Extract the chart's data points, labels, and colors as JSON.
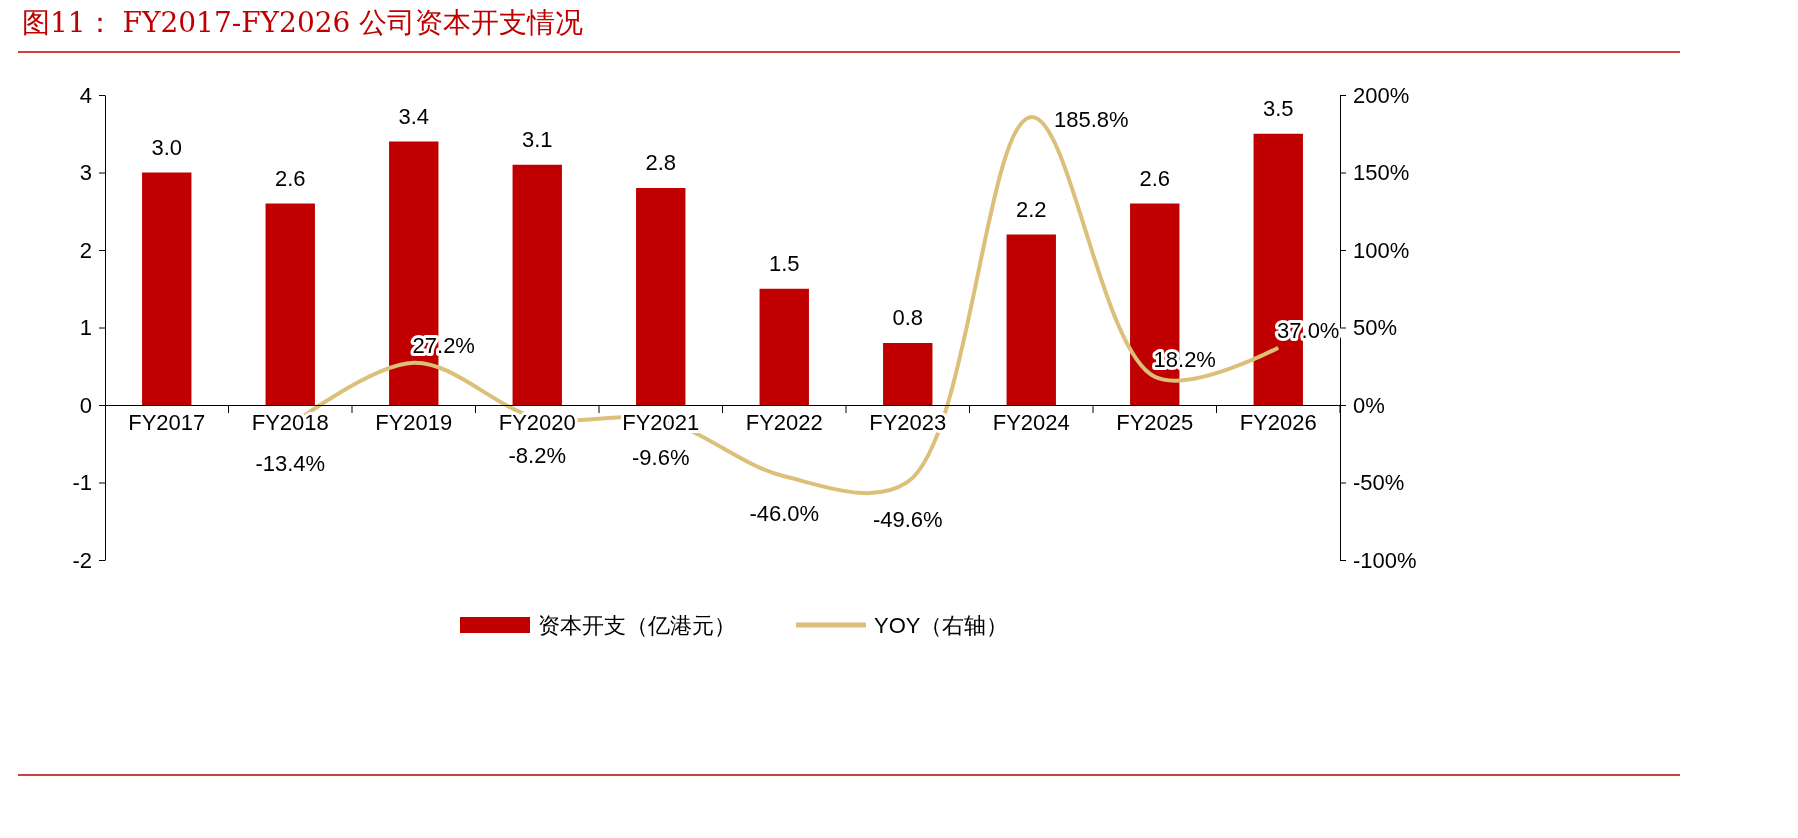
{
  "chart_data": {
    "type": "bar",
    "title": "图11： FY2017-FY2026 公司资本开支情况",
    "categories": [
      "FY2017",
      "FY2018",
      "FY2019",
      "FY2020",
      "FY2021",
      "FY2022",
      "FY2023",
      "FY2024",
      "FY2025",
      "FY2026"
    ],
    "series": [
      {
        "name": "资本开支（亿港元）",
        "color": "#c00000",
        "values": [
          3.0,
          2.6,
          3.4,
          3.1,
          2.8,
          1.5,
          0.8,
          2.2,
          2.6,
          3.5
        ],
        "value_labels": [
          "3.0",
          "2.6",
          "3.4",
          "3.1",
          "2.8",
          "1.5",
          "0.8",
          "2.2",
          "2.6",
          "3.5"
        ]
      },
      {
        "name": "YOY（右轴）",
        "type": "line",
        "axis": "y2",
        "color": "#dcc07a",
        "values": [
          null,
          -13.4,
          27.2,
          -8.2,
          -9.6,
          -46.0,
          -49.6,
          185.8,
          18.2,
          37.0
        ],
        "value_labels": [
          null,
          "-13.4%",
          "27.2%",
          "-8.2%",
          "-9.6%",
          "-46.0%",
          "-49.6%",
          "185.8%",
          "18.2%",
          "37.0%"
        ]
      }
    ],
    "ylim": [
      -2,
      4
    ],
    "yticks": [
      -2,
      -1,
      0,
      1,
      2,
      3,
      4
    ],
    "y2lim": [
      -100,
      200
    ],
    "y2ticks": [
      {
        "value": -100,
        "label": "-100%"
      },
      {
        "value": -50,
        "label": "-50%"
      },
      {
        "value": 0,
        "label": "0%"
      },
      {
        "value": 50,
        "label": "50%"
      },
      {
        "value": 100,
        "label": "100%"
      },
      {
        "value": 150,
        "label": "150%"
      },
      {
        "value": 200,
        "label": "200%"
      }
    ],
    "grid": false,
    "legend": "bottom",
    "marker": "none"
  }
}
